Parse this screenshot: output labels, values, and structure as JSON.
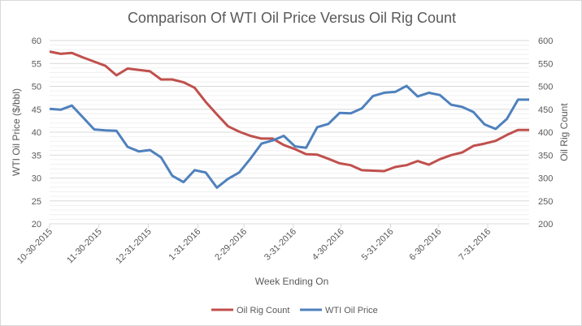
{
  "chart_data": {
    "type": "line",
    "title": "Comparison Of WTI Oil Price Versus Oil Rig Count",
    "xlabel": "Week Ending On",
    "ylabel": "WTI Oil Price ($/bbl)",
    "y2label": "Oil Rig Count",
    "ylim": [
      20,
      60
    ],
    "y2lim": [
      200,
      600
    ],
    "yticks": [
      20,
      25,
      30,
      35,
      40,
      45,
      50,
      55,
      60
    ],
    "y2ticks": [
      200,
      250,
      300,
      350,
      400,
      450,
      500,
      550,
      600
    ],
    "x_start": "10-30-2015",
    "x_interval": "weekly",
    "xtick_labels": [
      {
        "label": "10-30-2015",
        "day": 0
      },
      {
        "label": "11-30-2015",
        "day": 31
      },
      {
        "label": "12-31-2015",
        "day": 62
      },
      {
        "label": "1-31-2016",
        "day": 93
      },
      {
        "label": "2-29-2016",
        "day": 122
      },
      {
        "label": "3-31-2016",
        "day": 153
      },
      {
        "label": "4-30-2016",
        "day": 183
      },
      {
        "label": "5-31-2016",
        "day": 214
      },
      {
        "label": "6-30-2016",
        "day": 244
      },
      {
        "label": "7-31-2016",
        "day": 275
      }
    ],
    "grid": true,
    "legend_position": "bottom",
    "series": [
      {
        "name": "Oil Rig Count",
        "axis": "right",
        "color": "#c0504d",
        "values": [
          576,
          571,
          573,
          563,
          554,
          545,
          524,
          539,
          536,
          533,
          515,
          515,
          509,
          497,
          466,
          439,
          413,
          401,
          392,
          386,
          386,
          372,
          363,
          352,
          351,
          342,
          332,
          328,
          317,
          316,
          315,
          324,
          328,
          337,
          329,
          341,
          350,
          356,
          370,
          375,
          381,
          394,
          405,
          405
        ]
      },
      {
        "name": "WTI Oil Price",
        "axis": "left",
        "color": "#4f81bd",
        "values": [
          45.1,
          44.9,
          45.8,
          43.2,
          40.6,
          40.4,
          40.3,
          36.8,
          35.8,
          36.1,
          34.5,
          30.5,
          29.1,
          31.7,
          31.2,
          27.9,
          29.8,
          31.2,
          34.2,
          37.5,
          38.2,
          39.2,
          36.9,
          36.6,
          41.1,
          41.8,
          44.2,
          44.1,
          45.2,
          47.9,
          48.6,
          48.8,
          50.1,
          47.8,
          48.6,
          48.1,
          46.0,
          45.5,
          44.4,
          41.7,
          40.7,
          42.9,
          47.1,
          47.1
        ]
      }
    ]
  }
}
